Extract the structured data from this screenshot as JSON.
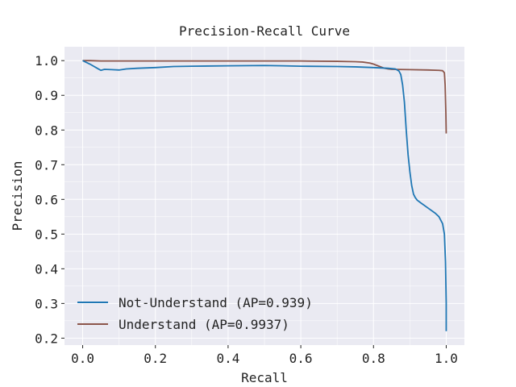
{
  "chart_data": {
    "type": "line",
    "title": "Precision-Recall Curve",
    "xlabel": "Recall",
    "ylabel": "Precision",
    "xlim": [
      -0.05,
      1.05
    ],
    "ylim": [
      0.18,
      1.04
    ],
    "xticks": [
      "0.0",
      "0.2",
      "0.4",
      "0.6",
      "0.8",
      "1.0"
    ],
    "yticks": [
      "0.2",
      "0.3",
      "0.4",
      "0.5",
      "0.6",
      "0.7",
      "0.8",
      "0.9",
      "1.0"
    ],
    "grid": true,
    "legend_position": "lower-left",
    "series": [
      {
        "name": "Not-Understand (AP=0.939)",
        "color": "#1f77b4",
        "x": [
          0.0,
          0.02,
          0.04,
          0.05,
          0.06,
          0.08,
          0.1,
          0.12,
          0.15,
          0.2,
          0.25,
          0.3,
          0.4,
          0.5,
          0.55,
          0.6,
          0.7,
          0.75,
          0.8,
          0.84,
          0.86,
          0.87,
          0.875,
          0.88,
          0.885,
          0.89,
          0.895,
          0.9,
          0.905,
          0.91,
          0.915,
          0.92,
          0.93,
          0.95,
          0.97,
          0.98,
          0.99,
          0.995,
          0.998,
          1.0,
          1.0
        ],
        "y": [
          1.0,
          0.99,
          0.978,
          0.972,
          0.975,
          0.974,
          0.973,
          0.976,
          0.978,
          0.98,
          0.983,
          0.984,
          0.985,
          0.986,
          0.985,
          0.984,
          0.983,
          0.982,
          0.98,
          0.978,
          0.976,
          0.97,
          0.96,
          0.93,
          0.88,
          0.8,
          0.73,
          0.68,
          0.64,
          0.615,
          0.605,
          0.598,
          0.59,
          0.575,
          0.56,
          0.55,
          0.53,
          0.5,
          0.42,
          0.3,
          0.22
        ]
      },
      {
        "name": "Understand (AP=0.9937)",
        "color": "#8c564b",
        "x": [
          0.0,
          0.02,
          0.05,
          0.1,
          0.2,
          0.3,
          0.4,
          0.5,
          0.6,
          0.7,
          0.75,
          0.77,
          0.79,
          0.8,
          0.81,
          0.82,
          0.83,
          0.84,
          0.85,
          0.9,
          0.95,
          0.98,
          0.99,
          0.995,
          0.997,
          0.999,
          1.0
        ],
        "y": [
          1.0,
          1.0,
          0.999,
          0.999,
          0.999,
          0.999,
          0.999,
          0.999,
          0.999,
          0.998,
          0.997,
          0.996,
          0.993,
          0.99,
          0.986,
          0.982,
          0.978,
          0.976,
          0.975,
          0.974,
          0.973,
          0.972,
          0.971,
          0.965,
          0.93,
          0.85,
          0.79
        ]
      }
    ]
  }
}
